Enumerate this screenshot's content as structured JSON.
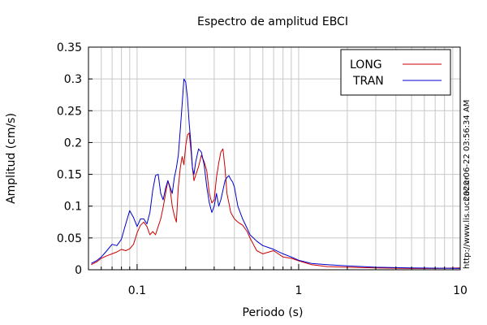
{
  "chart_data": {
    "type": "line",
    "title": "Espectro de amplitud EBCI",
    "xlabel": "Periodo (s)",
    "ylabel": "Amplitud (cm/s)",
    "x_scale": "log",
    "xlim": [
      0.05,
      10
    ],
    "ylim": [
      0,
      0.35
    ],
    "x_ticks": [
      {
        "value": 0.1,
        "label": "0.1"
      },
      {
        "value": 1,
        "label": "1"
      },
      {
        "value": 10,
        "label": "10"
      }
    ],
    "y_ticks": [
      {
        "value": 0,
        "label": "0"
      },
      {
        "value": 0.05,
        "label": "0.05"
      },
      {
        "value": 0.1,
        "label": "0.1"
      },
      {
        "value": 0.15,
        "label": "0.15"
      },
      {
        "value": 0.2,
        "label": "0.2"
      },
      {
        "value": 0.25,
        "label": "0.25"
      },
      {
        "value": 0.3,
        "label": "0.3"
      },
      {
        "value": 0.35,
        "label": "0.35"
      }
    ],
    "grid": true,
    "legend_position": "top-right",
    "side_texts": [
      "2020-06-22 03:56:34 AM",
      "http://www.lis.ucr.ac.cr"
    ],
    "series": [
      {
        "name": "LONG",
        "color": "#cc0000",
        "points": [
          [
            0.052,
            0.008
          ],
          [
            0.056,
            0.012
          ],
          [
            0.06,
            0.018
          ],
          [
            0.065,
            0.022
          ],
          [
            0.07,
            0.025
          ],
          [
            0.075,
            0.028
          ],
          [
            0.08,
            0.032
          ],
          [
            0.085,
            0.03
          ],
          [
            0.09,
            0.033
          ],
          [
            0.095,
            0.04
          ],
          [
            0.1,
            0.058
          ],
          [
            0.105,
            0.07
          ],
          [
            0.11,
            0.075
          ],
          [
            0.115,
            0.068
          ],
          [
            0.12,
            0.055
          ],
          [
            0.125,
            0.06
          ],
          [
            0.13,
            0.055
          ],
          [
            0.135,
            0.068
          ],
          [
            0.14,
            0.08
          ],
          [
            0.145,
            0.098
          ],
          [
            0.15,
            0.12
          ],
          [
            0.155,
            0.14
          ],
          [
            0.16,
            0.128
          ],
          [
            0.165,
            0.1
          ],
          [
            0.17,
            0.085
          ],
          [
            0.175,
            0.075
          ],
          [
            0.18,
            0.13
          ],
          [
            0.185,
            0.16
          ],
          [
            0.19,
            0.178
          ],
          [
            0.195,
            0.165
          ],
          [
            0.2,
            0.195
          ],
          [
            0.205,
            0.212
          ],
          [
            0.21,
            0.215
          ],
          [
            0.215,
            0.19
          ],
          [
            0.22,
            0.16
          ],
          [
            0.225,
            0.14
          ],
          [
            0.23,
            0.148
          ],
          [
            0.24,
            0.162
          ],
          [
            0.25,
            0.18
          ],
          [
            0.26,
            0.17
          ],
          [
            0.27,
            0.155
          ],
          [
            0.28,
            0.12
          ],
          [
            0.29,
            0.105
          ],
          [
            0.3,
            0.11
          ],
          [
            0.31,
            0.145
          ],
          [
            0.32,
            0.168
          ],
          [
            0.33,
            0.185
          ],
          [
            0.34,
            0.19
          ],
          [
            0.35,
            0.16
          ],
          [
            0.36,
            0.12
          ],
          [
            0.37,
            0.105
          ],
          [
            0.38,
            0.09
          ],
          [
            0.4,
            0.08
          ],
          [
            0.42,
            0.075
          ],
          [
            0.45,
            0.07
          ],
          [
            0.48,
            0.06
          ],
          [
            0.5,
            0.05
          ],
          [
            0.55,
            0.03
          ],
          [
            0.6,
            0.025
          ],
          [
            0.7,
            0.03
          ],
          [
            0.8,
            0.02
          ],
          [
            0.9,
            0.018
          ],
          [
            1.0,
            0.014
          ],
          [
            1.2,
            0.008
          ],
          [
            1.5,
            0.005
          ],
          [
            2.0,
            0.004
          ],
          [
            3.0,
            0.003
          ],
          [
            5.0,
            0.002
          ],
          [
            7.0,
            0.002
          ],
          [
            10,
            0.003
          ]
        ]
      },
      {
        "name": "TRAN",
        "color": "#0000cc",
        "points": [
          [
            0.052,
            0.01
          ],
          [
            0.056,
            0.014
          ],
          [
            0.06,
            0.02
          ],
          [
            0.065,
            0.03
          ],
          [
            0.07,
            0.04
          ],
          [
            0.075,
            0.038
          ],
          [
            0.08,
            0.048
          ],
          [
            0.085,
            0.072
          ],
          [
            0.09,
            0.093
          ],
          [
            0.095,
            0.082
          ],
          [
            0.1,
            0.068
          ],
          [
            0.105,
            0.08
          ],
          [
            0.11,
            0.08
          ],
          [
            0.115,
            0.072
          ],
          [
            0.12,
            0.09
          ],
          [
            0.125,
            0.125
          ],
          [
            0.13,
            0.148
          ],
          [
            0.135,
            0.15
          ],
          [
            0.14,
            0.12
          ],
          [
            0.145,
            0.11
          ],
          [
            0.15,
            0.128
          ],
          [
            0.155,
            0.14
          ],
          [
            0.16,
            0.13
          ],
          [
            0.165,
            0.12
          ],
          [
            0.17,
            0.145
          ],
          [
            0.175,
            0.16
          ],
          [
            0.18,
            0.18
          ],
          [
            0.185,
            0.22
          ],
          [
            0.19,
            0.26
          ],
          [
            0.195,
            0.3
          ],
          [
            0.2,
            0.295
          ],
          [
            0.205,
            0.27
          ],
          [
            0.21,
            0.23
          ],
          [
            0.215,
            0.2
          ],
          [
            0.22,
            0.16
          ],
          [
            0.225,
            0.15
          ],
          [
            0.23,
            0.168
          ],
          [
            0.24,
            0.19
          ],
          [
            0.25,
            0.185
          ],
          [
            0.26,
            0.165
          ],
          [
            0.27,
            0.13
          ],
          [
            0.28,
            0.105
          ],
          [
            0.29,
            0.09
          ],
          [
            0.3,
            0.1
          ],
          [
            0.31,
            0.12
          ],
          [
            0.32,
            0.1
          ],
          [
            0.33,
            0.11
          ],
          [
            0.34,
            0.125
          ],
          [
            0.35,
            0.14
          ],
          [
            0.36,
            0.145
          ],
          [
            0.37,
            0.148
          ],
          [
            0.38,
            0.142
          ],
          [
            0.39,
            0.138
          ],
          [
            0.4,
            0.13
          ],
          [
            0.42,
            0.1
          ],
          [
            0.45,
            0.08
          ],
          [
            0.48,
            0.065
          ],
          [
            0.5,
            0.055
          ],
          [
            0.55,
            0.045
          ],
          [
            0.6,
            0.038
          ],
          [
            0.65,
            0.035
          ],
          [
            0.7,
            0.032
          ],
          [
            0.8,
            0.025
          ],
          [
            0.9,
            0.02
          ],
          [
            1.0,
            0.015
          ],
          [
            1.2,
            0.01
          ],
          [
            1.5,
            0.008
          ],
          [
            2.0,
            0.006
          ],
          [
            3.0,
            0.004
          ],
          [
            5.0,
            0.003
          ],
          [
            10,
            0.002
          ]
        ]
      }
    ]
  }
}
